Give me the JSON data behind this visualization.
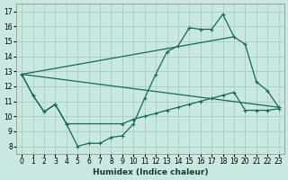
{
  "xlabel": "Humidex (Indice chaleur)",
  "xlim": [
    -0.5,
    23.5
  ],
  "ylim": [
    7.5,
    17.5
  ],
  "yticks": [
    8,
    9,
    10,
    11,
    12,
    13,
    14,
    15,
    16,
    17
  ],
  "xticks": [
    0,
    1,
    2,
    3,
    4,
    5,
    6,
    7,
    8,
    9,
    10,
    11,
    12,
    13,
    14,
    15,
    16,
    17,
    18,
    19,
    20,
    21,
    22,
    23
  ],
  "background_color": "#c8e8e0",
  "grid_color": "#a8ccc4",
  "line_color": "#1a6858",
  "line1_x": [
    0,
    1,
    2,
    3,
    4,
    5,
    6,
    7,
    8,
    9,
    10,
    11,
    12,
    13,
    14,
    15,
    16,
    17,
    18,
    19,
    20,
    21,
    22,
    23
  ],
  "line1_y": [
    12.8,
    11.4,
    10.3,
    10.8,
    9.5,
    8.0,
    8.2,
    8.2,
    8.6,
    8.7,
    9.5,
    11.2,
    12.8,
    14.3,
    14.7,
    15.9,
    15.8,
    15.8,
    16.8,
    15.3,
    14.8,
    12.3,
    11.7,
    10.6
  ],
  "line2_x": [
    0,
    1,
    2,
    3,
    4,
    9,
    10,
    11,
    12,
    13,
    14,
    15,
    16,
    17,
    18,
    19,
    20,
    21,
    22,
    23
  ],
  "line2_y": [
    12.8,
    11.4,
    10.3,
    10.8,
    9.5,
    9.5,
    9.8,
    10.0,
    10.2,
    10.4,
    10.6,
    10.8,
    11.0,
    11.2,
    11.4,
    11.6,
    10.4,
    10.4,
    10.4,
    10.5
  ],
  "line3_x": [
    0,
    19
  ],
  "line3_y": [
    12.8,
    15.3
  ],
  "line4_x": [
    0,
    23
  ],
  "line4_y": [
    12.8,
    10.6
  ]
}
